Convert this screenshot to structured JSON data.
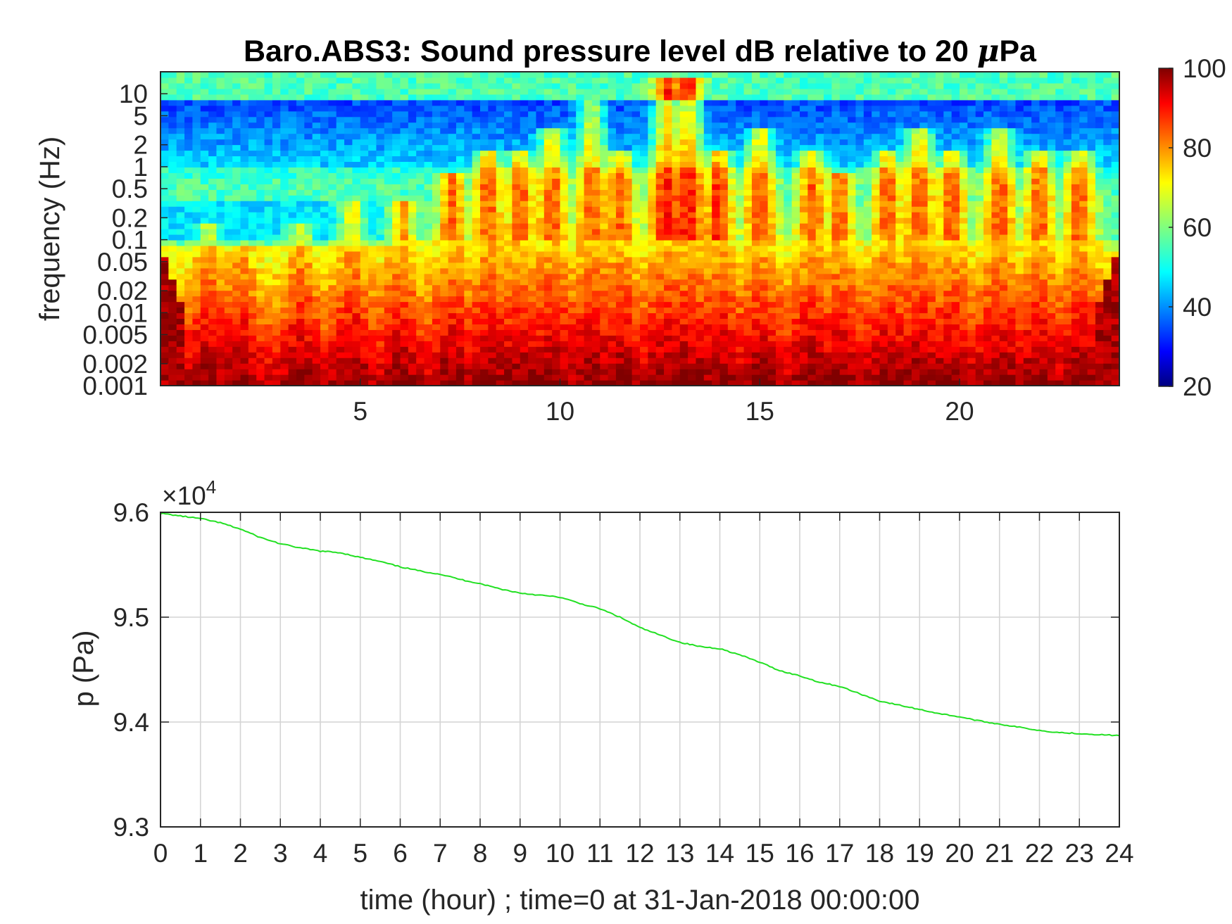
{
  "chart_data": [
    {
      "type": "heatmap",
      "title": "Baro.ABS3: Sound pressure level dB relative to 20 ",
      "title_mu": "μ",
      "title_tail": "Pa",
      "xlabel": "",
      "ylabel": "frequency (Hz)",
      "yscale": "log",
      "xlim": [
        0,
        24
      ],
      "ylim": [
        0.001,
        20
      ],
      "x_ticks": [
        "5",
        "10",
        "15",
        "20"
      ],
      "x_tick_values": [
        5,
        10,
        15,
        20
      ],
      "y_ticks": [
        "0.001",
        "0.002",
        "0.005",
        "0.01",
        "0.02",
        "0.05",
        "0.1",
        "0.2",
        "0.5",
        "1",
        "2",
        "5",
        "10"
      ],
      "y_tick_values": [
        0.001,
        0.002,
        0.005,
        0.01,
        0.02,
        0.05,
        0.1,
        0.2,
        0.5,
        1,
        2,
        5,
        10
      ],
      "colormap": "jet",
      "clim": [
        20,
        100
      ],
      "colorbar_ticks": [
        "20",
        "40",
        "60",
        "80",
        "100"
      ],
      "colorbar_tick_values": [
        20,
        40,
        60,
        80,
        100
      ],
      "activity_peaks_hour": [
        1.2,
        2.0,
        3.5,
        4.8,
        6.0,
        7.3,
        8.2,
        9.0,
        9.8,
        10.8,
        11.5,
        12.7,
        13.2,
        14.0,
        15.0,
        16.3,
        17.0,
        18.2,
        19.0,
        19.8,
        21.0,
        22.0,
        23.0
      ],
      "activity_peaks_max_freq_hz": [
        0.1,
        0.05,
        0.1,
        0.2,
        0.2,
        0.5,
        1,
        1,
        2,
        5,
        1,
        10,
        10,
        1,
        2,
        1,
        0.5,
        1,
        2,
        1,
        2,
        1,
        1
      ]
    },
    {
      "type": "line",
      "title": "",
      "xlabel": "time (hour) ; time=0 at 31-Jan-2018 00:00:00",
      "ylabel": "p (Pa)",
      "xlim": [
        0,
        24
      ],
      "ylim": [
        93000,
        96000
      ],
      "exponent_label": "×10",
      "exponent_power": "4",
      "x_ticks": [
        "0",
        "1",
        "2",
        "3",
        "4",
        "5",
        "6",
        "7",
        "8",
        "9",
        "10",
        "11",
        "12",
        "13",
        "14",
        "15",
        "16",
        "17",
        "18",
        "19",
        "20",
        "21",
        "22",
        "23",
        "24"
      ],
      "y_ticks": [
        "9.3",
        "9.4",
        "9.5",
        "9.6"
      ],
      "y_tick_values": [
        93000,
        94000,
        95000,
        96000
      ],
      "grid": true,
      "line_color": "#22e022",
      "series": [
        {
          "x": [
            0,
            0.5,
            1,
            1.5,
            2,
            2.5,
            3,
            3.5,
            4,
            4.5,
            5,
            5.5,
            6,
            6.5,
            7,
            7.5,
            8,
            8.5,
            9,
            9.5,
            10,
            10.5,
            11,
            11.5,
            12,
            12.5,
            13,
            13.5,
            14,
            14.5,
            15,
            15.5,
            16,
            16.5,
            17,
            17.5,
            18,
            18.5,
            19,
            19.5,
            20,
            20.5,
            21,
            21.5,
            22,
            22.5,
            23,
            23.5,
            24
          ],
          "y": [
            95990,
            95965,
            95940,
            95900,
            95840,
            95760,
            95700,
            95660,
            95630,
            95615,
            95570,
            95530,
            95480,
            95440,
            95410,
            95360,
            95320,
            95270,
            95230,
            95210,
            95190,
            95130,
            95080,
            95000,
            94900,
            94830,
            94760,
            94720,
            94700,
            94640,
            94570,
            94490,
            94440,
            94380,
            94340,
            94270,
            94200,
            94160,
            94120,
            94080,
            94050,
            94010,
            93980,
            93950,
            93920,
            93900,
            93890,
            93880,
            93870
          ]
        }
      ]
    }
  ]
}
